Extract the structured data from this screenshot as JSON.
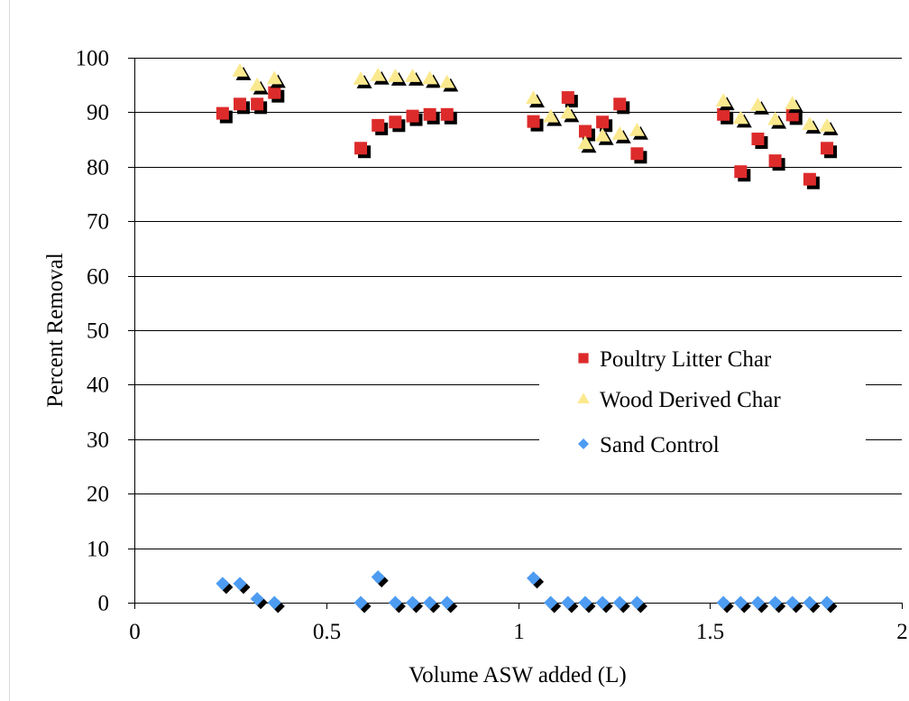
{
  "chart_data": {
    "type": "scatter",
    "title": "",
    "xlabel": "Volume ASW added (L)",
    "ylabel": "Percent Removal",
    "xlim": [
      0,
      2
    ],
    "ylim": [
      0,
      100
    ],
    "x_ticks": [
      0,
      0.5,
      1,
      1.5,
      2
    ],
    "x_tick_labels": [
      "0",
      "0.5",
      "1",
      "1.5",
      "2"
    ],
    "y_ticks": [
      0,
      10,
      20,
      30,
      40,
      50,
      60,
      70,
      80,
      90,
      100
    ],
    "y_tick_labels": [
      "0",
      "10",
      "20",
      "30",
      "40",
      "50",
      "60",
      "70",
      "80",
      "90",
      "100"
    ],
    "grid": "horizontal",
    "legend_position": "right",
    "series": [
      {
        "name": "Poultry Litter Char",
        "marker": "square",
        "color": "#dd2b2b",
        "points": [
          {
            "x": 0.23,
            "y": 89.8
          },
          {
            "x": 0.275,
            "y": 91.5
          },
          {
            "x": 0.32,
            "y": 91.5
          },
          {
            "x": 0.365,
            "y": 93.6
          },
          {
            "x": 0.59,
            "y": 83.4
          },
          {
            "x": 0.635,
            "y": 87.6
          },
          {
            "x": 0.68,
            "y": 88.2
          },
          {
            "x": 0.725,
            "y": 89.3
          },
          {
            "x": 0.77,
            "y": 89.6
          },
          {
            "x": 0.815,
            "y": 89.6
          },
          {
            "x": 1.04,
            "y": 88.3
          },
          {
            "x": 1.13,
            "y": 92.7
          },
          {
            "x": 1.175,
            "y": 86.5
          },
          {
            "x": 1.22,
            "y": 88.2
          },
          {
            "x": 1.265,
            "y": 91.5
          },
          {
            "x": 1.31,
            "y": 82.4
          },
          {
            "x": 1.535,
            "y": 89.6
          },
          {
            "x": 1.58,
            "y": 79.1
          },
          {
            "x": 1.625,
            "y": 85.1
          },
          {
            "x": 1.67,
            "y": 81.1
          },
          {
            "x": 1.715,
            "y": 89.5
          },
          {
            "x": 1.76,
            "y": 77.7
          },
          {
            "x": 1.805,
            "y": 83.4
          }
        ]
      },
      {
        "name": "Wood Derived Char",
        "marker": "triangle",
        "color": "#fbe98f",
        "points": [
          {
            "x": 0.275,
            "y": 97.6
          },
          {
            "x": 0.32,
            "y": 95.0
          },
          {
            "x": 0.365,
            "y": 96.2
          },
          {
            "x": 0.59,
            "y": 96.1
          },
          {
            "x": 0.635,
            "y": 96.8
          },
          {
            "x": 0.68,
            "y": 96.6
          },
          {
            "x": 0.725,
            "y": 96.6
          },
          {
            "x": 0.77,
            "y": 96.2
          },
          {
            "x": 0.815,
            "y": 95.5
          },
          {
            "x": 1.04,
            "y": 92.6
          },
          {
            "x": 1.085,
            "y": 89.2
          },
          {
            "x": 1.13,
            "y": 89.9
          },
          {
            "x": 1.175,
            "y": 84.3
          },
          {
            "x": 1.22,
            "y": 85.7
          },
          {
            "x": 1.265,
            "y": 86.0
          },
          {
            "x": 1.31,
            "y": 86.7
          },
          {
            "x": 1.535,
            "y": 92.1
          },
          {
            "x": 1.58,
            "y": 88.9
          },
          {
            "x": 1.625,
            "y": 91.3
          },
          {
            "x": 1.67,
            "y": 88.7
          },
          {
            "x": 1.715,
            "y": 91.6
          },
          {
            "x": 1.76,
            "y": 87.8
          },
          {
            "x": 1.805,
            "y": 87.5
          }
        ]
      },
      {
        "name": "Sand Control",
        "marker": "diamond",
        "color": "#4d9cf2",
        "points": [
          {
            "x": 0.23,
            "y": 3.5
          },
          {
            "x": 0.275,
            "y": 3.5
          },
          {
            "x": 0.32,
            "y": 0.7
          },
          {
            "x": 0.365,
            "y": 0.0
          },
          {
            "x": 0.59,
            "y": 0.0
          },
          {
            "x": 0.635,
            "y": 4.7
          },
          {
            "x": 0.68,
            "y": 0.0
          },
          {
            "x": 0.725,
            "y": 0.0
          },
          {
            "x": 0.77,
            "y": 0.0
          },
          {
            "x": 0.815,
            "y": 0.0
          },
          {
            "x": 1.04,
            "y": 4.5
          },
          {
            "x": 1.085,
            "y": 0.0
          },
          {
            "x": 1.13,
            "y": 0.0
          },
          {
            "x": 1.175,
            "y": 0.0
          },
          {
            "x": 1.22,
            "y": 0.0
          },
          {
            "x": 1.265,
            "y": 0.0
          },
          {
            "x": 1.31,
            "y": 0.0
          },
          {
            "x": 1.535,
            "y": 0.0
          },
          {
            "x": 1.58,
            "y": 0.0
          },
          {
            "x": 1.625,
            "y": 0.0
          },
          {
            "x": 1.67,
            "y": 0.0
          },
          {
            "x": 1.715,
            "y": 0.0
          },
          {
            "x": 1.76,
            "y": 0.0
          },
          {
            "x": 1.805,
            "y": 0.0
          }
        ]
      }
    ],
    "style": {
      "shadow_color": "#000000",
      "gridline_color": "#000000",
      "frame_color": "#d9d9d9"
    }
  }
}
